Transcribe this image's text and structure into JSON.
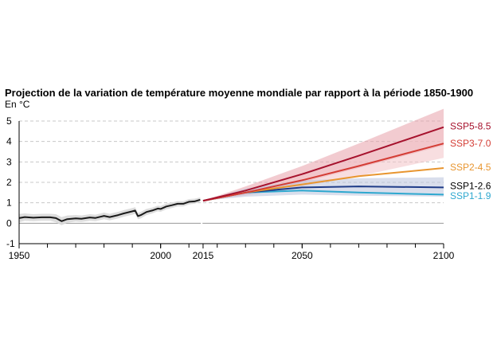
{
  "chart_data": {
    "type": "line",
    "title": "Projection de la variation de température moyenne mondiale par rapport à la période 1850-1900",
    "subtitle": "En °C",
    "xlabel": "",
    "ylabel": "",
    "xlim": [
      1950,
      2100
    ],
    "ylim": [
      -1,
      5
    ],
    "x_ticks": [
      "1950",
      "2000",
      "2015",
      "2050",
      "2100"
    ],
    "y_ticks": [
      "-1",
      "0",
      "1",
      "2",
      "3",
      "4",
      "5"
    ],
    "grid": "horizontal dashed",
    "historical": {
      "color": "#1a1a1a",
      "x": [
        1950,
        1952,
        1955,
        1958,
        1961,
        1963,
        1965,
        1967,
        1970,
        1972,
        1975,
        1977,
        1980,
        1982,
        1985,
        1987,
        1990,
        1991,
        1992,
        1993,
        1995,
        1997,
        1999,
        2000,
        2002,
        2004,
        2006,
        2008,
        2010,
        2012,
        2014
      ],
      "values": [
        0.25,
        0.3,
        0.27,
        0.29,
        0.29,
        0.25,
        0.1,
        0.2,
        0.24,
        0.22,
        0.28,
        0.26,
        0.36,
        0.3,
        0.4,
        0.48,
        0.58,
        0.62,
        0.35,
        0.4,
        0.55,
        0.62,
        0.72,
        0.7,
        0.82,
        0.88,
        0.95,
        0.95,
        1.05,
        1.07,
        1.15
      ],
      "band_low": [
        0.05,
        0.12,
        0.1,
        0.12,
        0.12,
        0.05,
        -0.1,
        0.02,
        0.08,
        0.06,
        0.12,
        0.1,
        0.2,
        0.14,
        0.24,
        0.32,
        0.42,
        0.46,
        0.2,
        0.24,
        0.4,
        0.48,
        0.58,
        0.56,
        0.68,
        0.74,
        0.82,
        0.82,
        0.92,
        0.95,
        1.04
      ],
      "band_high": [
        0.45,
        0.48,
        0.44,
        0.46,
        0.46,
        0.44,
        0.3,
        0.38,
        0.4,
        0.38,
        0.44,
        0.42,
        0.52,
        0.46,
        0.56,
        0.64,
        0.74,
        0.78,
        0.5,
        0.56,
        0.7,
        0.76,
        0.86,
        0.84,
        0.96,
        1.02,
        1.08,
        1.08,
        1.18,
        1.2,
        1.26
      ]
    },
    "scenarios": [
      {
        "name": "SSP5-8.5",
        "color": "#a6122d",
        "x": [
          2015,
          2030,
          2050,
          2070,
          2100
        ],
        "values": [
          1.1,
          1.6,
          2.4,
          3.3,
          4.7
        ],
        "band_low": [
          1.1,
          1.4,
          2.0,
          2.7,
          3.8
        ],
        "band_high": [
          1.1,
          1.8,
          2.8,
          3.9,
          5.6
        ]
      },
      {
        "name": "SSP3-7.0",
        "color": "#d43d35",
        "x": [
          2015,
          2030,
          2050,
          2070,
          2100
        ],
        "values": [
          1.1,
          1.5,
          2.1,
          2.8,
          3.9
        ],
        "band_low": [
          1.1,
          1.35,
          1.8,
          2.3,
          3.2
        ],
        "band_high": [
          1.1,
          1.65,
          2.5,
          3.3,
          4.7
        ]
      },
      {
        "name": "SSP2-4.5",
        "color": "#e8952f",
        "x": [
          2015,
          2030,
          2050,
          2070,
          2100
        ],
        "values": [
          1.1,
          1.5,
          1.9,
          2.3,
          2.7
        ]
      },
      {
        "name": "SSP1-2.6",
        "color": "#1f3c88",
        "x": [
          2015,
          2030,
          2050,
          2070,
          2100
        ],
        "values": [
          1.1,
          1.5,
          1.75,
          1.8,
          1.75
        ],
        "band_low": [
          1.1,
          1.3,
          1.4,
          1.35,
          1.3
        ],
        "band_high": [
          1.1,
          1.7,
          2.1,
          2.2,
          2.25
        ]
      },
      {
        "name": "SSP1-1.9",
        "color": "#2ea8cf",
        "x": [
          2015,
          2030,
          2050,
          2070,
          2100
        ],
        "values": [
          1.1,
          1.5,
          1.6,
          1.5,
          1.4
        ]
      }
    ]
  }
}
